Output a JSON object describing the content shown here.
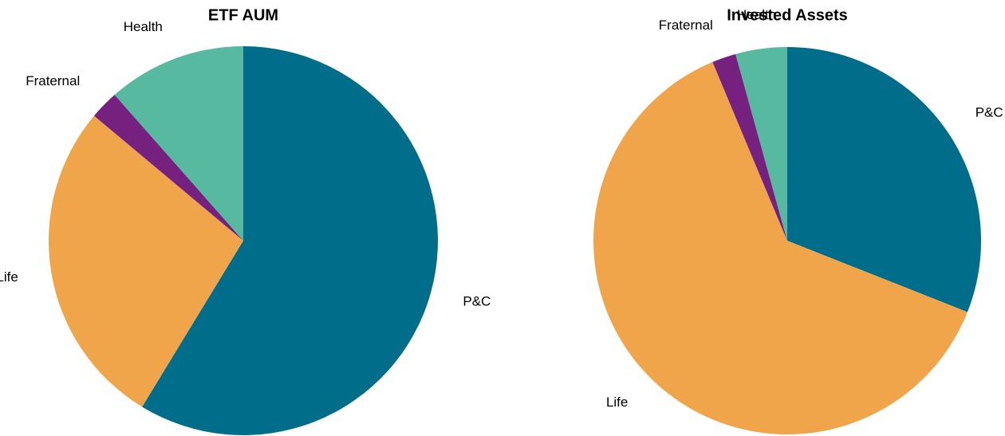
{
  "chart_data": [
    {
      "type": "pie",
      "title": "ETF AUM",
      "categories": [
        "P&C",
        "Life",
        "Fraternal",
        "Health"
      ],
      "values": [
        58.7,
        27.4,
        2.4,
        11.5
      ],
      "colors": [
        "#006e8a",
        "#f0a54a",
        "#76207f",
        "#56b9a0"
      ]
    },
    {
      "type": "pie",
      "title": "Invested Assets",
      "categories": [
        "P&C",
        "Life",
        "Fraternal",
        "Health"
      ],
      "values": [
        31,
        62.7,
        2,
        4.3
      ],
      "colors": [
        "#006e8a",
        "#f0a54a",
        "#76207f",
        "#56b9a0"
      ]
    }
  ]
}
